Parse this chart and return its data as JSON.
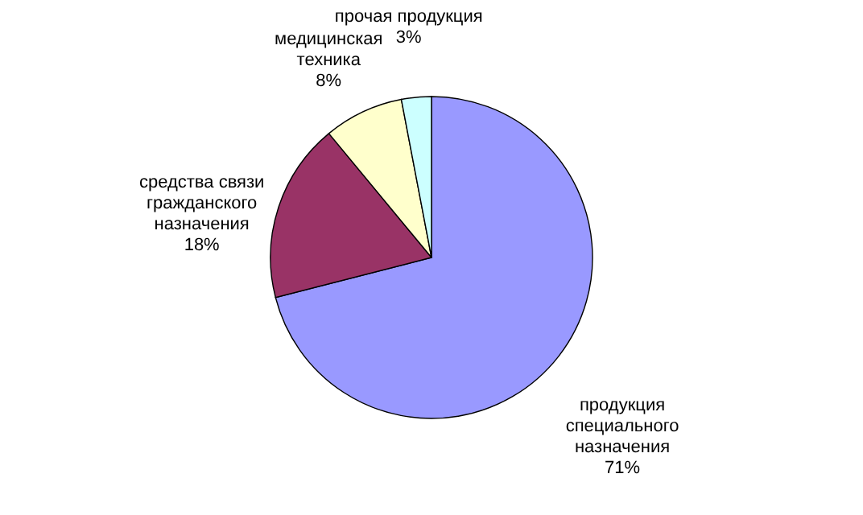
{
  "chart_data": {
    "type": "pie",
    "categories": [
      "продукция специального назначения",
      "средства связи гражданского назначения",
      "медицинская техника",
      "прочая продукция"
    ],
    "values": [
      71,
      18,
      8,
      3
    ],
    "value_labels": [
      "71%",
      "18%",
      "8%",
      "3%"
    ],
    "colors": [
      "#9999ff",
      "#993366",
      "#ffffcc",
      "#ccffff"
    ],
    "legend": false
  }
}
